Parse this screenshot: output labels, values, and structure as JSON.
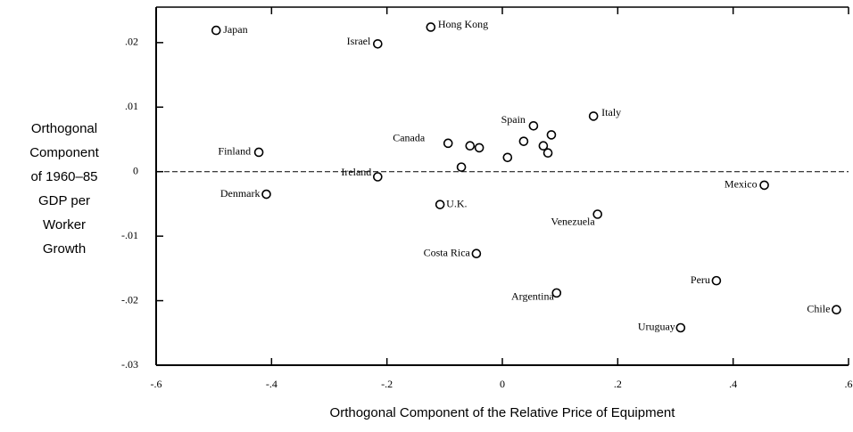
{
  "chart_data": {
    "type": "scatter",
    "xlabel": "Orthogonal Component of the Relative Price of Equipment",
    "ylabel": [
      "Orthogonal",
      "Component",
      "of 1960–85",
      "GDP per",
      "Worker",
      "Growth"
    ],
    "labels": [
      "Japan",
      "Israel",
      "Hong Kong",
      "Italy",
      "Spain",
      "Canada",
      null,
      null,
      null,
      null,
      null,
      null,
      null,
      null,
      "Finland",
      "Ireland",
      "Denmark",
      "U.K.",
      "Mexico",
      "Venezuela",
      "Costa Rica",
      "Peru",
      "Argentina",
      "Uruguay",
      "Chile"
    ],
    "x": [
      -0.496,
      -0.216,
      -0.124,
      0.158,
      0.054,
      -0.094,
      -0.056,
      -0.04,
      0.037,
      0.085,
      0.071,
      0.079,
      0.009,
      -0.071,
      -0.422,
      -0.216,
      -0.409,
      -0.108,
      0.454,
      0.165,
      -0.045,
      0.371,
      0.094,
      0.309,
      0.579
    ],
    "y": [
      0.0219,
      0.0198,
      0.0224,
      0.0086,
      0.0071,
      0.0044,
      0.004,
      0.0037,
      0.0047,
      0.0057,
      0.004,
      0.0029,
      0.0022,
      0.0007,
      0.003,
      -0.0008,
      -0.0035,
      -0.0051,
      -0.0021,
      -0.0066,
      -0.0127,
      -0.0169,
      -0.0188,
      -0.0242,
      -0.0214
    ],
    "xlim": [
      -0.6,
      0.6
    ],
    "ylim": [
      -0.03,
      0.0255
    ],
    "xticks": [
      {
        "value": -0.6,
        "label": "-.6"
      },
      {
        "value": -0.4,
        "label": "-.4"
      },
      {
        "value": -0.2,
        "label": "-.2"
      },
      0,
      {
        "value": 0.2,
        "label": ".2"
      },
      {
        "value": 0.4,
        "label": ".4"
      },
      {
        "value": 0.6,
        "label": ".6"
      }
    ],
    "yticks": [
      {
        "value": -0.03,
        "label": "-.03"
      },
      {
        "value": -0.02,
        "label": "-.02"
      },
      {
        "value": -0.01,
        "label": "-.01"
      },
      0,
      {
        "value": 0.01,
        "label": ".01"
      },
      {
        "value": 0.02,
        "label": ".02"
      }
    ],
    "color": "#000000"
  }
}
